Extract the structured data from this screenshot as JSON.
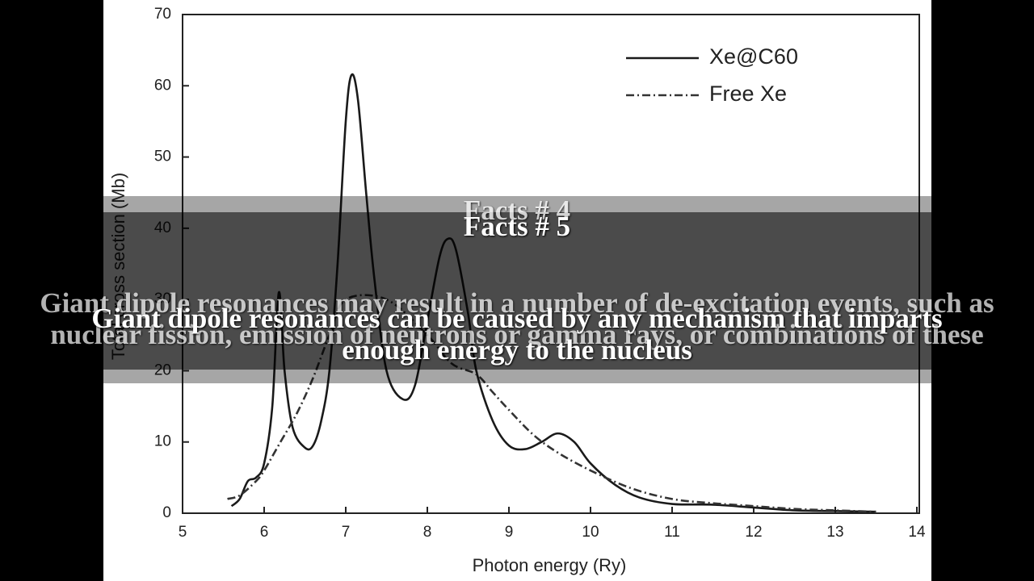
{
  "chart_data": {
    "type": "line",
    "xlabel": "Photon energy (Ry)",
    "ylabel": "Total cross section (Mb)",
    "xlim": [
      5,
      14
    ],
    "xticks": [
      5,
      6,
      7,
      8,
      9,
      10,
      11,
      12,
      13,
      14
    ],
    "ylim": [
      0,
      70
    ],
    "yticks": [
      0,
      10,
      20,
      30,
      40,
      50,
      60,
      70
    ],
    "legend": "upper right",
    "grid": false,
    "series": [
      {
        "name": "Xe@C60",
        "color": "#1a1a1a",
        "line_style": "solid",
        "x": [
          5.6,
          5.7,
          5.8,
          5.9,
          6.0,
          6.1,
          6.18,
          6.25,
          6.35,
          6.5,
          6.6,
          6.7,
          6.8,
          6.9,
          7.0,
          7.07,
          7.15,
          7.25,
          7.35,
          7.5,
          7.7,
          7.85,
          8.0,
          8.15,
          8.25,
          8.35,
          8.5,
          8.6,
          8.8,
          9.0,
          9.2,
          9.4,
          9.6,
          9.8,
          10.0,
          10.3,
          10.6,
          11.0,
          11.5,
          12.0,
          12.5,
          13.0,
          13.5
        ],
        "values": [
          1,
          2,
          4.5,
          5,
          7,
          15,
          31,
          20,
          12,
          9.2,
          9.5,
          13,
          20,
          35,
          55,
          61.5,
          58,
          45,
          33,
          20,
          16,
          18,
          27,
          36,
          38.5,
          37,
          28,
          20,
          13,
          9.5,
          9,
          10,
          11.2,
          10,
          7,
          4,
          2.2,
          1.3,
          1.2,
          0.8,
          0.4,
          0.3,
          0.2
        ]
      },
      {
        "name": "Free Xe",
        "color": "#333333",
        "line_style": "dashdot",
        "x": [
          5.55,
          5.7,
          5.9,
          6.0,
          6.2,
          6.4,
          6.6,
          6.8,
          7.0,
          7.5,
          8.0,
          8.3,
          8.6,
          8.8,
          9.0,
          9.3,
          9.6,
          10.0,
          10.5,
          11.0,
          11.5,
          12.0,
          12.5,
          13.0,
          13.5
        ],
        "values": [
          2,
          2.5,
          4.5,
          6,
          10,
          14,
          19,
          25,
          30,
          30,
          25,
          21,
          19.5,
          17,
          14.5,
          11,
          8.5,
          6,
          3.5,
          2,
          1.4,
          1,
          0.6,
          0.4,
          0.2
        ]
      }
    ]
  },
  "overlay": {
    "headings": [
      "Facts # 4",
      "Facts # 5"
    ],
    "texts": [
      "Giant dipole resonances may result in a number of de-excitation events, such as nuclear fission, emission of neutrons or gamma rays, or combinations of these",
      "Giant dipole resonances can be caused by any mechanism that imparts enough energy to the nucleus"
    ]
  }
}
